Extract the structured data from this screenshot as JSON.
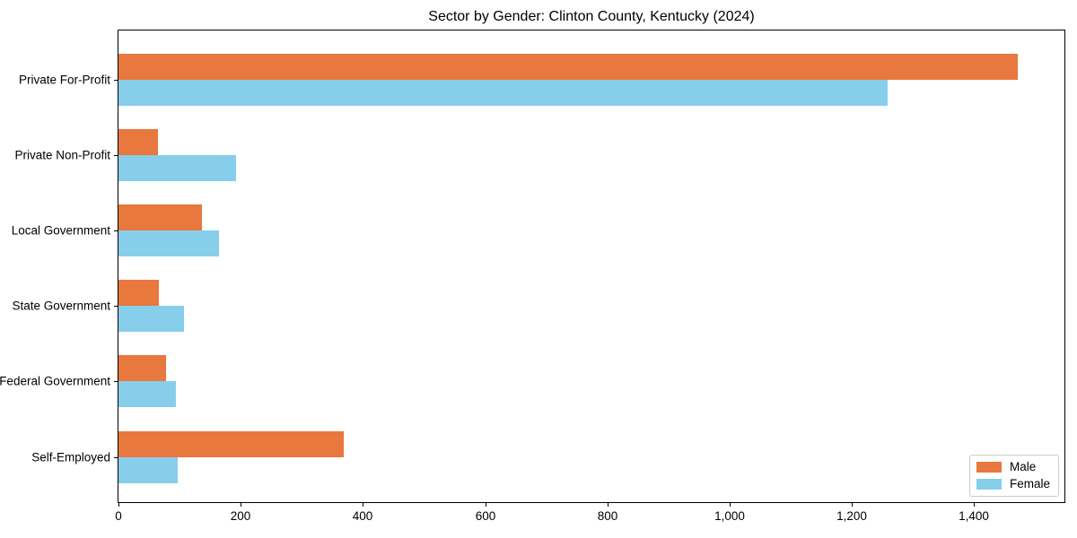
{
  "chart_data": {
    "type": "bar",
    "orientation": "horizontal",
    "title": "Sector by Gender: Clinton County, Kentucky (2024)",
    "categories": [
      "Private For-Profit",
      "Private Non-Profit",
      "Local Government",
      "State Government",
      "Federal Government",
      "Self-Employed"
    ],
    "series": [
      {
        "name": "Male",
        "color": "#E8783D",
        "values": [
          1472,
          64,
          137,
          66,
          78,
          369
        ]
      },
      {
        "name": "Female",
        "color": "#87CEEB",
        "values": [
          1259,
          193,
          164,
          107,
          94,
          97
        ]
      }
    ],
    "xlabel": "",
    "ylabel": "",
    "xlim": [
      0,
      1548
    ],
    "xticks": [
      0,
      200,
      400,
      600,
      800,
      1000,
      1200,
      1400
    ],
    "xtick_labels": [
      "0",
      "200",
      "400",
      "600",
      "800",
      "1,000",
      "1,200",
      "1,400"
    ],
    "grid": false,
    "legend_position": "lower right",
    "frame": "full-box",
    "axis_color": "#000000",
    "background_color": "#ffffff"
  }
}
